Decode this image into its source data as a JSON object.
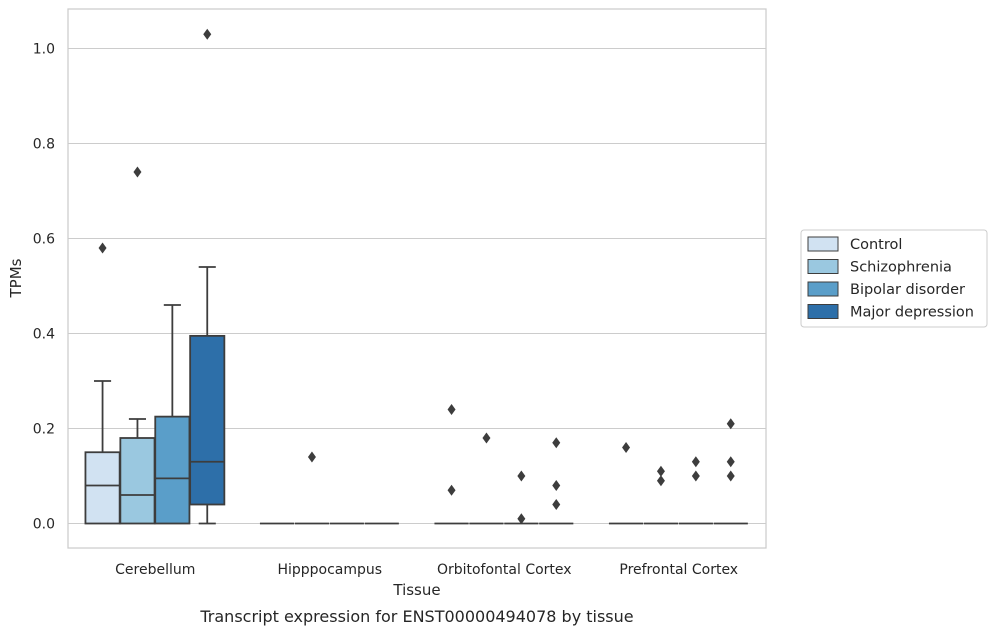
{
  "chart_data": {
    "type": "box",
    "title": "",
    "caption": "Transcript expression for ENST00000494078 by tissue",
    "xlabel": "Tissue",
    "ylabel": "TPMs",
    "ylim": [
      -0.05,
      1.08
    ],
    "yticks": [
      0.0,
      0.2,
      0.4,
      0.6,
      0.8,
      1.0
    ],
    "ytick_labels": [
      "0.0",
      "0.2",
      "0.4",
      "0.6",
      "0.8",
      "1.0"
    ],
    "grid": "horizontal",
    "legend_position": "right",
    "categories": [
      "Cerebellum",
      "Hipppocampus",
      "Orbitofontal Cortex",
      "Prefrontal Cortex"
    ],
    "series": [
      {
        "name": "Control",
        "color": "#d1e2f2",
        "boxes": [
          {
            "min": 0.0,
            "q1": 0.0,
            "median": 0.08,
            "q3": 0.15,
            "max": 0.3,
            "outliers": [
              0.58
            ]
          },
          {
            "min": 0.0,
            "q1": 0.0,
            "median": 0.0,
            "q3": 0.0,
            "max": 0.0,
            "outliers": []
          },
          {
            "min": 0.0,
            "q1": 0.0,
            "median": 0.0,
            "q3": 0.0,
            "max": 0.0,
            "outliers": [
              0.24,
              0.07
            ]
          },
          {
            "min": 0.0,
            "q1": 0.0,
            "median": 0.0,
            "q3": 0.0,
            "max": 0.0,
            "outliers": [
              0.16
            ]
          }
        ]
      },
      {
        "name": "Schizophrenia",
        "color": "#9ac8e0",
        "boxes": [
          {
            "min": 0.0,
            "q1": 0.0,
            "median": 0.06,
            "q3": 0.18,
            "max": 0.22,
            "outliers": [
              0.74
            ]
          },
          {
            "min": 0.0,
            "q1": 0.0,
            "median": 0.0,
            "q3": 0.0,
            "max": 0.0,
            "outliers": [
              0.14
            ]
          },
          {
            "min": 0.0,
            "q1": 0.0,
            "median": 0.0,
            "q3": 0.0,
            "max": 0.0,
            "outliers": [
              0.18
            ]
          },
          {
            "min": 0.0,
            "q1": 0.0,
            "median": 0.0,
            "q3": 0.0,
            "max": 0.0,
            "outliers": [
              0.11,
              0.09
            ]
          }
        ]
      },
      {
        "name": "Bipolar disorder",
        "color": "#5a9ec9",
        "boxes": [
          {
            "min": 0.0,
            "q1": 0.0,
            "median": 0.095,
            "q3": 0.225,
            "max": 0.46,
            "outliers": []
          },
          {
            "min": 0.0,
            "q1": 0.0,
            "median": 0.0,
            "q3": 0.0,
            "max": 0.0,
            "outliers": []
          },
          {
            "min": 0.0,
            "q1": 0.0,
            "median": 0.0,
            "q3": 0.0,
            "max": 0.0,
            "outliers": [
              0.1,
              0.01
            ]
          },
          {
            "min": 0.0,
            "q1": 0.0,
            "median": 0.0,
            "q3": 0.0,
            "max": 0.0,
            "outliers": [
              0.13,
              0.1
            ]
          }
        ]
      },
      {
        "name": "Major depression",
        "color": "#2d6fa9",
        "boxes": [
          {
            "min": 0.0,
            "q1": 0.04,
            "median": 0.13,
            "q3": 0.395,
            "max": 0.54,
            "outliers": [
              1.03
            ]
          },
          {
            "min": 0.0,
            "q1": 0.0,
            "median": 0.0,
            "q3": 0.0,
            "max": 0.0,
            "outliers": []
          },
          {
            "min": 0.0,
            "q1": 0.0,
            "median": 0.0,
            "q3": 0.0,
            "max": 0.0,
            "outliers": [
              0.17,
              0.08,
              0.04
            ]
          },
          {
            "min": 0.0,
            "q1": 0.0,
            "median": 0.0,
            "q3": 0.0,
            "max": 0.0,
            "outliers": [
              0.21,
              0.13,
              0.1
            ]
          }
        ]
      }
    ]
  }
}
